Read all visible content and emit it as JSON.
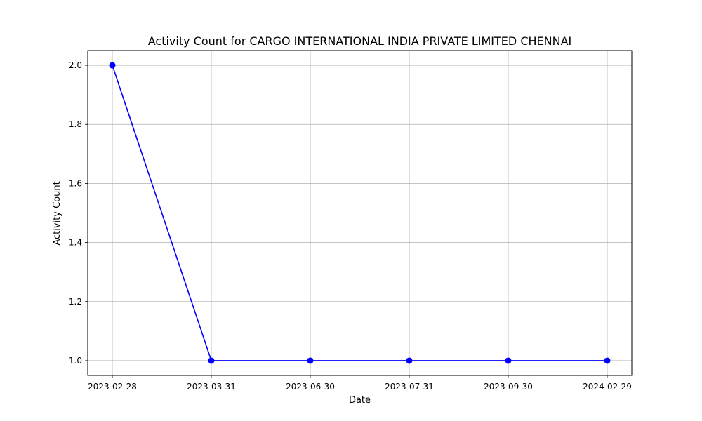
{
  "chart_data": {
    "type": "line",
    "title": "Activity Count for CARGO INTERNATIONAL INDIA PRIVATE LIMITED CHENNAI",
    "xlabel": "Date",
    "ylabel": "Activity Count",
    "categories": [
      "2023-02-28",
      "2023-03-31",
      "2023-06-30",
      "2023-07-31",
      "2023-09-30",
      "2024-02-29"
    ],
    "series": [
      {
        "values": [
          2,
          1,
          1,
          1,
          1,
          1
        ],
        "color": "#0000ff",
        "marker": "circle"
      }
    ],
    "ylim": [
      0.95,
      2.05
    ],
    "yticks": [
      1.0,
      1.2,
      1.4,
      1.6,
      1.8,
      2.0
    ],
    "grid": true
  }
}
